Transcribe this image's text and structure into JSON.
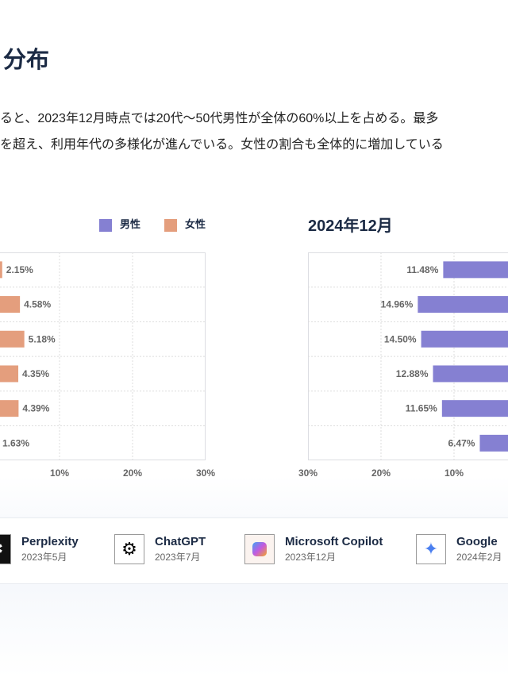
{
  "heading": "分布",
  "description": [
    "ると、2023年12月時点では20代〜50代男性が全体の60%以上を占める。最多",
    "を超え、利用年代の多様化が進んでいる。女性の割合も全体的に増加している"
  ],
  "legend": {
    "male": "男性",
    "female": "女性"
  },
  "colors": {
    "male": "#8580d2",
    "female": "#e49e7d"
  },
  "chart_data": [
    {
      "type": "bar",
      "series": [
        {
          "name": "女性",
          "values": [
            2.15,
            4.58,
            5.18,
            4.35,
            4.39,
            1.63
          ],
          "labels": [
            "2.15%",
            "4.58%",
            "5.18%",
            "4.35%",
            "4.39%",
            "1.63%"
          ]
        }
      ],
      "xticks": [
        "10%",
        "20%",
        "30%"
      ],
      "xlim": [
        0,
        30
      ]
    },
    {
      "type": "bar",
      "title": "2024年12月",
      "series": [
        {
          "name": "男性",
          "values": [
            11.48,
            14.96,
            14.5,
            12.88,
            11.65,
            6.47
          ],
          "labels": [
            "11.48%",
            "14.96%",
            "14.50%",
            "12.88%",
            "11.65%",
            "6.47%"
          ]
        }
      ],
      "xticks": [
        "30%",
        "20%",
        "10%"
      ],
      "xlim": [
        0,
        30
      ]
    }
  ],
  "tools": [
    {
      "name": "Perplexity",
      "date": "2023年5月",
      "icon": "perplexity-icon"
    },
    {
      "name": "ChatGPT",
      "date": "2023年7月",
      "icon": "chatgpt-icon"
    },
    {
      "name": "Microsoft Copilot",
      "date": "2023年12月",
      "icon": "copilot-icon"
    },
    {
      "name": "Google",
      "date": "2024年2月",
      "icon": "gemini-icon"
    }
  ]
}
